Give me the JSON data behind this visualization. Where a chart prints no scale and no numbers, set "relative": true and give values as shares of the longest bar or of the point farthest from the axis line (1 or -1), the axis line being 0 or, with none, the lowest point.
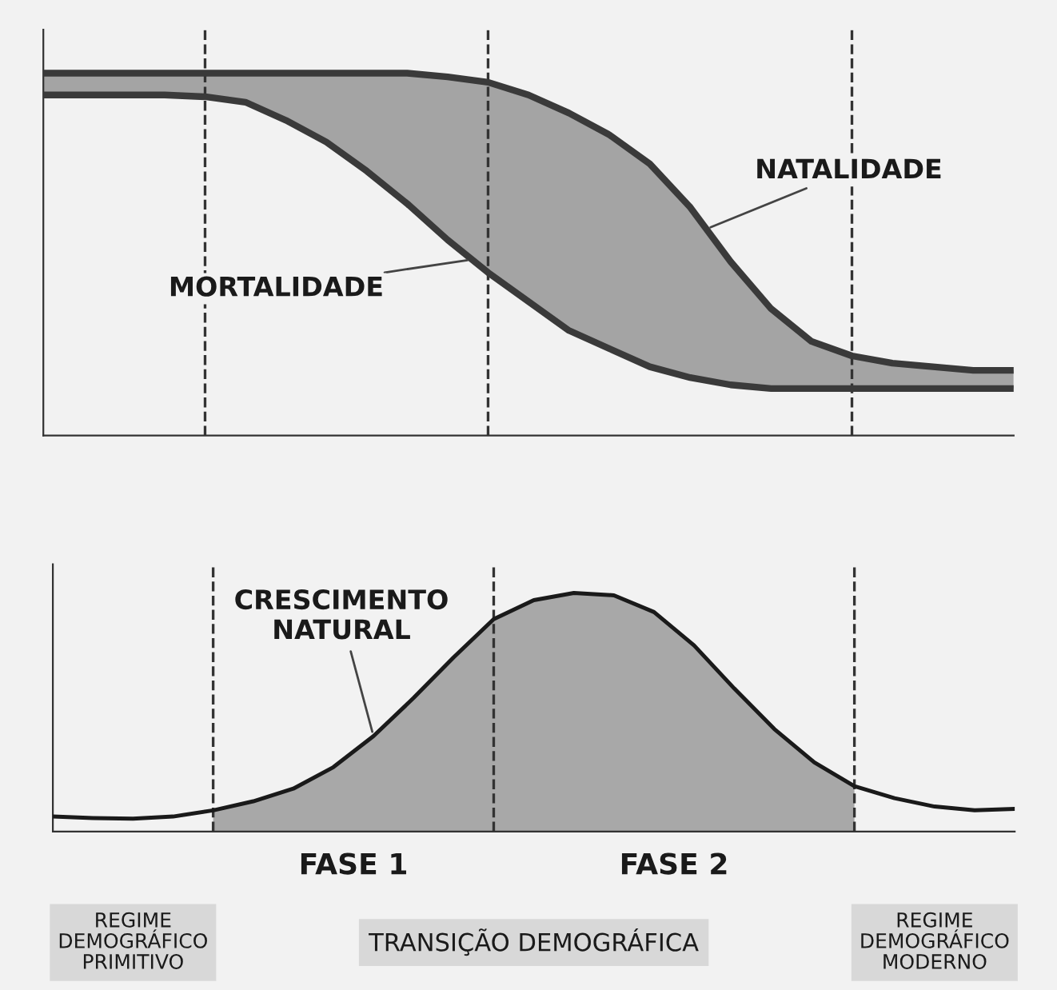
{
  "chart_data": [
    {
      "type": "area",
      "relative": true,
      "categories": [
        null,
        null,
        null,
        null,
        null,
        null,
        null,
        null,
        null,
        null,
        null,
        null,
        null,
        null,
        null,
        null,
        null,
        null,
        null,
        null,
        null,
        null,
        null,
        null,
        null
      ],
      "grid": "x",
      "series": [
        {
          "name": "NATALIDADE",
          "type": "area",
          "color": "#3a3a3a",
          "values": [
            1,
            1,
            1,
            1,
            1,
            1,
            1,
            1,
            1,
            1,
            0.99,
            0.975,
            0.94,
            0.89,
            0.83,
            0.75,
            0.63,
            0.48,
            0.35,
            0.26,
            0.22,
            0.2,
            0.19,
            0.18,
            0.18
          ]
        },
        {
          "name": "MORTALIDADE",
          "type": "line",
          "color": "#3a3a3a",
          "values": [
            0.94,
            0.94,
            0.94,
            0.94,
            0.935,
            0.92,
            0.87,
            0.81,
            0.73,
            0.64,
            0.54,
            0.45,
            0.37,
            0.29,
            0.24,
            0.19,
            0.16,
            0.14,
            0.13,
            0.13,
            0.13,
            0.13,
            0.13,
            0.13,
            0.13
          ]
        }
      ]
    },
    {
      "type": "line",
      "relative": true,
      "categories": [
        null,
        null,
        null,
        null,
        null,
        null,
        null,
        null,
        null,
        null,
        null,
        null,
        null,
        null,
        null,
        null,
        null,
        null,
        null,
        null,
        null,
        null,
        null,
        null,
        null
      ],
      "grid": "x",
      "series": [
        {
          "type": "area",
          "color": "#a8a8a8",
          "values": [
            null,
            null,
            null,
            null,
            0.089,
            0.127,
            0.18,
            0.27,
            0.4,
            0.56,
            0.73,
            0.89,
            0.97,
            1,
            0.99,
            0.92,
            0.78,
            0.6,
            0.43,
            0.29,
            0.19,
            null,
            null,
            null,
            null
          ]
        },
        {
          "name": "CRESCIMENTO NATURAL",
          "type": "line",
          "color": "#1a1a1a",
          "values": [
            0.063,
            0.057,
            0.054,
            0.063,
            0.089,
            0.127,
            0.18,
            0.27,
            0.4,
            0.56,
            0.73,
            0.89,
            0.97,
            1,
            0.99,
            0.92,
            0.78,
            0.6,
            0.43,
            0.29,
            0.19,
            0.14,
            0.105,
            0.089,
            0.095
          ]
        }
      ],
      "annotations": [
        "FASE 1",
        "FASE 2",
        "REGIME\nDEMOGRÁFICO\nPRIMITIVO",
        "TRANSIÇÃO DEMOGRÁFICA",
        "REGIME\nDEMOGRÁFICO\nMODERNO"
      ]
    }
  ]
}
